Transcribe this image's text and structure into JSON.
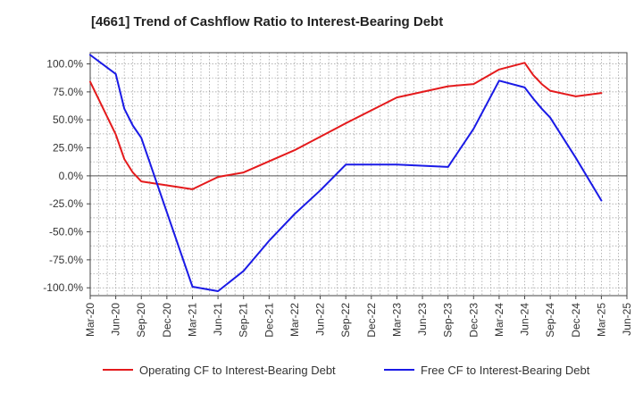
{
  "chart_data": {
    "type": "line",
    "title": "[4661]  Trend of Cashflow Ratio to Interest-Bearing Debt",
    "xlabel": "",
    "ylabel": "",
    "x_tick_labels": [
      "Mar-20",
      "Jun-20",
      "Sep-20",
      "Dec-20",
      "Mar-21",
      "Jun-21",
      "Sep-21",
      "Dec-21",
      "Mar-22",
      "Jun-22",
      "Sep-22",
      "Dec-22",
      "Mar-23",
      "Jun-23",
      "Sep-23",
      "Dec-23",
      "Mar-24",
      "Jun-24",
      "Sep-24",
      "Dec-24",
      "Mar-25",
      "Jun-25"
    ],
    "y_ticks": [
      100,
      75,
      50,
      25,
      0,
      -25,
      -50,
      -75,
      -100
    ],
    "y_tick_labels": [
      "100.0%",
      "75.0%",
      "50.0%",
      "25.0%",
      "0.0%",
      "-25.0%",
      "-50.0%",
      "-75.0%",
      "-100.0%"
    ],
    "ylim": [
      -107,
      110
    ],
    "grid": true,
    "legend_position": "bottom",
    "series": [
      {
        "name": "Operating CF to Interest-Bearing Debt",
        "color": "#e41a1c",
        "x": [
          "Mar-20",
          "Jun-20",
          "Jul-20",
          "Aug-20",
          "Sep-20",
          "Mar-21",
          "Jun-21",
          "Sep-21",
          "Mar-22",
          "Sep-22",
          "Mar-23",
          "Sep-23",
          "Dec-23",
          "Mar-24",
          "Jun-24",
          "Jul-24",
          "Aug-24",
          "Sep-24",
          "Dec-24",
          "Mar-25"
        ],
        "values": [
          84,
          37,
          15,
          3,
          -5,
          -12,
          -1,
          3,
          23,
          47,
          70,
          80,
          82,
          95,
          101,
          90,
          82,
          76,
          71,
          74
        ]
      },
      {
        "name": "Free CF to Interest-Bearing Debt",
        "color": "#1a1ae6",
        "x": [
          "Mar-20",
          "Jun-20",
          "Jul-20",
          "Aug-20",
          "Sep-20",
          "Mar-21",
          "Jun-21",
          "Sep-21",
          "Dec-21",
          "Mar-22",
          "Jun-22",
          "Sep-22",
          "Mar-23",
          "Sep-23",
          "Dec-23",
          "Mar-24",
          "Jun-24",
          "Jul-24",
          "Aug-24",
          "Sep-24",
          "Dec-24",
          "Mar-25"
        ],
        "values": [
          108,
          91,
          60,
          45,
          34,
          -99,
          -103,
          -85,
          -58,
          -34,
          -13,
          10,
          10,
          8,
          42,
          85,
          79,
          69,
          60,
          52,
          16,
          -22
        ]
      }
    ]
  }
}
